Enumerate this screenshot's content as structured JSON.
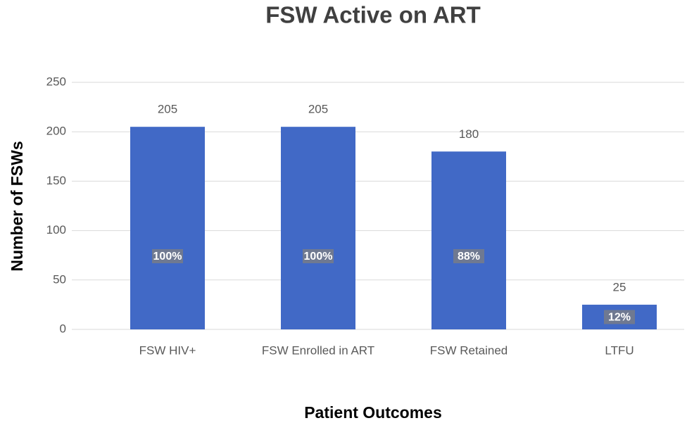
{
  "chart_data": {
    "type": "bar",
    "title": "FSW Active on ART",
    "x_label": "Patient Outcomes",
    "y_label": "Number of FSWs",
    "categories": [
      "FSW HIV+",
      "FSW Enrolled in ART",
      "FSW Retained",
      "LTFU"
    ],
    "values": [
      205,
      205,
      180,
      25
    ],
    "percent_labels": [
      "100%",
      "100%",
      "88%",
      "12%"
    ],
    "color": "#4169c6",
    "ylim": [
      0,
      250
    ],
    "yticks": [
      0,
      50,
      100,
      150,
      200,
      250
    ],
    "grid": true
  }
}
